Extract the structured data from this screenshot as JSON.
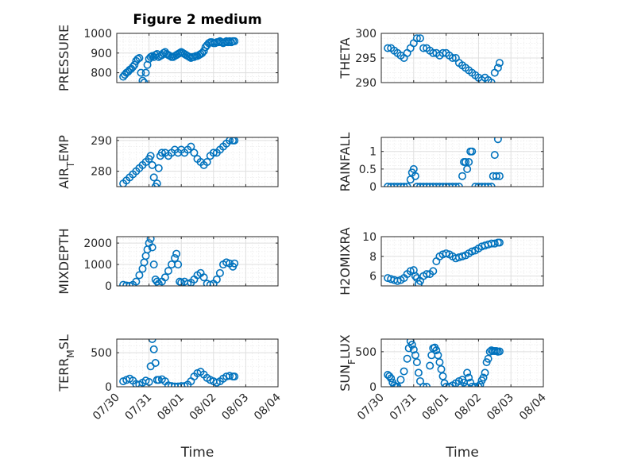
{
  "figure": {
    "title": "Figure 2 medium",
    "marker_color": "#0072BD",
    "axis_color": "#262626",
    "grid": true,
    "minor_grid": true,
    "marker": "circle"
  },
  "chart_data": [
    {
      "type": "scatter",
      "panel": "top-left",
      "ylabel": "PRESSURE",
      "ylim": [
        750,
        1000
      ],
      "yticks": [
        800,
        900,
        1000
      ],
      "ytick_labels": [
        "800",
        "900",
        "1000"
      ],
      "xlim": [
        "07/30",
        "08/04"
      ],
      "xticks": [
        "07/30",
        "07/31",
        "08/01",
        "08/02",
        "08/03",
        "08/04"
      ],
      "show_xticklabels": false,
      "title": "Figure 2 medium",
      "series": [
        {
          "x": [
            0.2,
            0.25,
            0.3,
            0.35,
            0.4,
            0.45,
            0.5,
            0.55,
            0.6,
            0.65,
            0.7,
            0.75,
            0.8,
            0.85,
            0.9,
            0.95,
            1.0,
            1.05,
            1.1,
            1.15,
            1.2,
            1.25,
            1.3,
            1.35,
            1.4,
            1.45,
            1.5,
            1.55,
            1.6,
            1.65,
            1.7,
            1.75,
            1.8,
            1.85,
            1.9,
            1.95,
            2.0,
            2.05,
            2.1,
            2.15,
            2.2,
            2.25,
            2.3,
            2.35,
            2.4,
            2.45,
            2.5,
            2.55,
            2.6,
            2.65,
            2.7,
            2.75,
            2.8,
            2.85,
            2.9,
            2.95,
            3.0,
            3.05,
            3.1,
            3.15,
            3.2,
            3.25,
            3.3,
            3.35,
            3.4,
            3.45,
            3.5,
            3.55,
            3.6,
            3.65
          ],
          "y": [
            780,
            790,
            800,
            805,
            815,
            820,
            830,
            840,
            860,
            870,
            875,
            800,
            760,
            750,
            800,
            840,
            870,
            880,
            885,
            880,
            890,
            895,
            880,
            885,
            890,
            900,
            905,
            895,
            890,
            885,
            880,
            880,
            885,
            890,
            895,
            900,
            905,
            900,
            895,
            890,
            885,
            880,
            875,
            880,
            880,
            885,
            885,
            890,
            895,
            900,
            910,
            930,
            940,
            950,
            955,
            955,
            950,
            950,
            955,
            955,
            960,
            955,
            950,
            955,
            960,
            955,
            960,
            955,
            960,
            960
          ]
        }
      ]
    },
    {
      "type": "scatter",
      "panel": "top-right",
      "ylabel": "THETA",
      "ylim": [
        290,
        300
      ],
      "yticks": [
        290,
        295,
        300
      ],
      "ytick_labels": [
        "290",
        "295",
        "300"
      ],
      "xlim": [
        "07/30",
        "08/04"
      ],
      "xticks": [
        "07/30",
        "07/31",
        "08/01",
        "08/02",
        "08/03",
        "08/04"
      ],
      "show_xticklabels": false,
      "series": [
        {
          "x": [
            0.2,
            0.3,
            0.4,
            0.5,
            0.6,
            0.7,
            0.8,
            0.9,
            1.0,
            1.1,
            1.2,
            1.3,
            1.4,
            1.5,
            1.6,
            1.7,
            1.8,
            1.9,
            2.0,
            2.1,
            2.2,
            2.3,
            2.4,
            2.5,
            2.6,
            2.7,
            2.8,
            2.9,
            3.0,
            3.1,
            3.2,
            3.3,
            3.4,
            3.5,
            3.6,
            3.65
          ],
          "y": [
            297,
            297,
            296.5,
            296,
            295.5,
            295,
            296,
            297,
            298,
            299,
            299,
            297,
            297,
            296.5,
            296,
            296,
            295.5,
            296,
            296,
            295.5,
            295,
            295,
            294,
            293.5,
            293,
            292.5,
            292,
            291.5,
            291,
            290.5,
            291,
            290.5,
            290,
            292,
            293,
            294
          ]
        }
      ]
    },
    {
      "type": "scatter",
      "panel": "row2-left",
      "ylabel": "AIR_TEMP",
      "ylim": [
        275,
        291
      ],
      "yticks": [
        280,
        290
      ],
      "ytick_labels": [
        "280",
        "290"
      ],
      "xlim": [
        "07/30",
        "08/04"
      ],
      "xticks": [
        "07/30",
        "07/31",
        "08/01",
        "08/02",
        "08/03",
        "08/04"
      ],
      "show_xticklabels": false,
      "series": [
        {
          "x": [
            0.2,
            0.3,
            0.4,
            0.5,
            0.6,
            0.7,
            0.8,
            0.9,
            1.0,
            1.05,
            1.1,
            1.15,
            1.2,
            1.25,
            1.3,
            1.35,
            1.4,
            1.5,
            1.6,
            1.7,
            1.8,
            1.9,
            2.0,
            2.1,
            2.2,
            2.3,
            2.4,
            2.5,
            2.6,
            2.7,
            2.8,
            2.9,
            3.0,
            3.1,
            3.2,
            3.3,
            3.4,
            3.5,
            3.6,
            3.65
          ],
          "y": [
            276,
            277,
            278,
            279,
            280,
            281,
            282,
            283,
            284,
            285,
            282,
            278,
            275,
            276,
            281,
            285,
            286,
            286,
            285,
            286,
            287,
            286,
            287,
            286,
            287,
            288,
            286,
            284,
            283,
            282,
            283,
            285,
            286,
            286,
            287,
            288,
            289,
            290,
            290,
            290
          ]
        }
      ]
    },
    {
      "type": "scatter",
      "panel": "row2-right",
      "ylabel": "RAINFALL",
      "ylim": [
        0,
        1.4
      ],
      "yticks": [
        0,
        0.5,
        1
      ],
      "ytick_labels": [
        "0",
        "0.5",
        "1"
      ],
      "xlim": [
        "07/30",
        "08/04"
      ],
      "xticks": [
        "07/30",
        "07/31",
        "08/01",
        "08/02",
        "08/03",
        "08/04"
      ],
      "show_xticklabels": false,
      "series": [
        {
          "x": [
            0.2,
            0.3,
            0.4,
            0.5,
            0.6,
            0.7,
            0.8,
            0.9,
            0.95,
            1.0,
            1.05,
            1.1,
            1.2,
            1.3,
            1.4,
            1.5,
            1.6,
            1.7,
            1.8,
            1.9,
            2.0,
            2.1,
            2.2,
            2.3,
            2.4,
            2.5,
            2.55,
            2.6,
            2.65,
            2.7,
            2.75,
            2.8,
            2.9,
            3.0,
            3.1,
            3.2,
            3.3,
            3.4,
            3.45,
            3.5,
            3.55,
            3.6,
            3.65
          ],
          "y": [
            0,
            0,
            0,
            0,
            0,
            0,
            0,
            0.2,
            0.4,
            0.5,
            0.3,
            0,
            0,
            0,
            0,
            0,
            0,
            0,
            0,
            0,
            0,
            0,
            0,
            0,
            0,
            0.3,
            0.7,
            0.7,
            0.5,
            0.7,
            1.0,
            1.0,
            0,
            0,
            0,
            0,
            0,
            0,
            0.3,
            0.9,
            0.3,
            1.35,
            0.3
          ]
        }
      ]
    },
    {
      "type": "scatter",
      "panel": "row3-left",
      "ylabel": "MIXDEPTH",
      "ylim": [
        0,
        2300
      ],
      "yticks": [
        0,
        1000,
        2000
      ],
      "ytick_labels": [
        "0",
        "1000",
        "2000"
      ],
      "xlim": [
        "07/30",
        "08/04"
      ],
      "xticks": [
        "07/30",
        "07/31",
        "08/01",
        "08/02",
        "08/03",
        "08/04"
      ],
      "show_xticklabels": false,
      "series": [
        {
          "x": [
            0.2,
            0.3,
            0.4,
            0.5,
            0.6,
            0.7,
            0.8,
            0.85,
            0.9,
            0.95,
            1.0,
            1.05,
            1.1,
            1.15,
            1.2,
            1.25,
            1.3,
            1.4,
            1.5,
            1.6,
            1.7,
            1.8,
            1.85,
            1.9,
            1.95,
            2.0,
            2.1,
            2.2,
            2.3,
            2.4,
            2.5,
            2.6,
            2.7,
            2.8,
            2.9,
            3.0,
            3.1,
            3.2,
            3.3,
            3.4,
            3.5,
            3.6,
            3.65
          ],
          "y": [
            50,
            20,
            0,
            50,
            200,
            500,
            800,
            1100,
            1400,
            1700,
            2000,
            2200,
            1800,
            1000,
            300,
            200,
            100,
            200,
            400,
            700,
            1000,
            1300,
            1500,
            1000,
            200,
            150,
            200,
            100,
            150,
            300,
            500,
            600,
            400,
            100,
            50,
            100,
            300,
            600,
            1000,
            1100,
            1050,
            900,
            1050
          ]
        }
      ]
    },
    {
      "type": "scatter",
      "panel": "row3-right",
      "ylabel": "H2OMIXRA",
      "ylim": [
        5,
        10
      ],
      "yticks": [
        6,
        8,
        10
      ],
      "ytick_labels": [
        "6",
        "8",
        "10"
      ],
      "xlim": [
        "07/30",
        "08/04"
      ],
      "xticks": [
        "07/30",
        "07/31",
        "08/01",
        "08/02",
        "08/03",
        "08/04"
      ],
      "show_xticklabels": false,
      "series": [
        {
          "x": [
            0.2,
            0.3,
            0.4,
            0.5,
            0.6,
            0.7,
            0.8,
            0.9,
            1.0,
            1.05,
            1.1,
            1.15,
            1.2,
            1.3,
            1.4,
            1.5,
            1.6,
            1.7,
            1.8,
            1.9,
            2.0,
            2.1,
            2.2,
            2.3,
            2.4,
            2.5,
            2.6,
            2.7,
            2.8,
            2.9,
            3.0,
            3.1,
            3.2,
            3.3,
            3.4,
            3.5,
            3.6,
            3.65
          ],
          "y": [
            5.8,
            5.7,
            5.6,
            5.5,
            5.6,
            5.8,
            6.2,
            6.5,
            6.6,
            6.0,
            5.8,
            5.2,
            5.5,
            6.0,
            6.2,
            6.2,
            6.5,
            7.5,
            8.0,
            8.2,
            8.3,
            8.2,
            8.0,
            7.8,
            7.9,
            8.0,
            8.1,
            8.3,
            8.5,
            8.6,
            8.8,
            9.0,
            9.1,
            9.2,
            9.3,
            9.3,
            9.4,
            9.4
          ]
        }
      ]
    },
    {
      "type": "scatter",
      "panel": "bottom-left",
      "ylabel": "TERR_MSL",
      "ylim": [
        0,
        700
      ],
      "yticks": [
        0,
        500
      ],
      "ytick_labels": [
        "0",
        "500"
      ],
      "xlim": [
        "07/30",
        "08/04"
      ],
      "xticks": [
        "07/30",
        "07/31",
        "08/01",
        "08/02",
        "08/03",
        "08/04"
      ],
      "xtick_labels": [
        "07/30",
        "07/31",
        "08/01",
        "08/02",
        "08/03",
        "08/04"
      ],
      "show_xticklabels": true,
      "xlabel": "Time",
      "series": [
        {
          "x": [
            0.2,
            0.3,
            0.4,
            0.5,
            0.6,
            0.7,
            0.8,
            0.9,
            1.0,
            1.05,
            1.1,
            1.15,
            1.2,
            1.25,
            1.3,
            1.4,
            1.5,
            1.6,
            1.7,
            1.8,
            1.9,
            2.0,
            2.1,
            2.2,
            2.3,
            2.4,
            2.5,
            2.6,
            2.7,
            2.8,
            2.9,
            3.0,
            3.1,
            3.2,
            3.3,
            3.4,
            3.5,
            3.6,
            3.65
          ],
          "y": [
            80,
            100,
            120,
            90,
            40,
            30,
            60,
            90,
            70,
            300,
            700,
            550,
            350,
            100,
            100,
            110,
            80,
            20,
            10,
            5,
            5,
            10,
            10,
            30,
            80,
            150,
            200,
            220,
            180,
            130,
            100,
            80,
            60,
            80,
            120,
            150,
            160,
            150,
            150
          ]
        }
      ]
    },
    {
      "type": "scatter",
      "panel": "bottom-right",
      "ylabel": "SUN_FLUX",
      "ylim": [
        0,
        680
      ],
      "yticks": [
        0,
        500
      ],
      "ytick_labels": [
        "0",
        "500"
      ],
      "xlim": [
        "07/30",
        "08/04"
      ],
      "xticks": [
        "07/30",
        "07/31",
        "08/01",
        "08/02",
        "08/03",
        "08/04"
      ],
      "xtick_labels": [
        "07/30",
        "07/31",
        "08/01",
        "08/02",
        "08/03",
        "08/04"
      ],
      "show_xticklabels": true,
      "xlabel": "Time",
      "series": [
        {
          "x": [
            0.2,
            0.25,
            0.3,
            0.35,
            0.4,
            0.45,
            0.5,
            0.6,
            0.7,
            0.8,
            0.85,
            0.9,
            0.95,
            1.0,
            1.05,
            1.1,
            1.15,
            1.2,
            1.3,
            1.4,
            1.5,
            1.55,
            1.6,
            1.65,
            1.7,
            1.75,
            1.8,
            1.85,
            1.9,
            1.95,
            2.0,
            2.1,
            2.2,
            2.3,
            2.4,
            2.5,
            2.55,
            2.6,
            2.65,
            2.7,
            2.75,
            2.8,
            2.9,
            3.0,
            3.05,
            3.1,
            3.15,
            3.2,
            3.25,
            3.3,
            3.35,
            3.4,
            3.45,
            3.5,
            3.55,
            3.6,
            3.65
          ],
          "y": [
            170,
            150,
            120,
            60,
            20,
            0,
            0,
            100,
            220,
            400,
            550,
            650,
            600,
            530,
            450,
            350,
            200,
            80,
            0,
            0,
            300,
            450,
            550,
            560,
            520,
            450,
            350,
            250,
            150,
            50,
            0,
            0,
            20,
            50,
            80,
            100,
            60,
            0,
            200,
            130,
            60,
            0,
            0,
            0,
            30,
            90,
            130,
            200,
            350,
            400,
            500,
            520,
            510,
            510,
            510,
            500,
            505
          ]
        }
      ]
    }
  ]
}
